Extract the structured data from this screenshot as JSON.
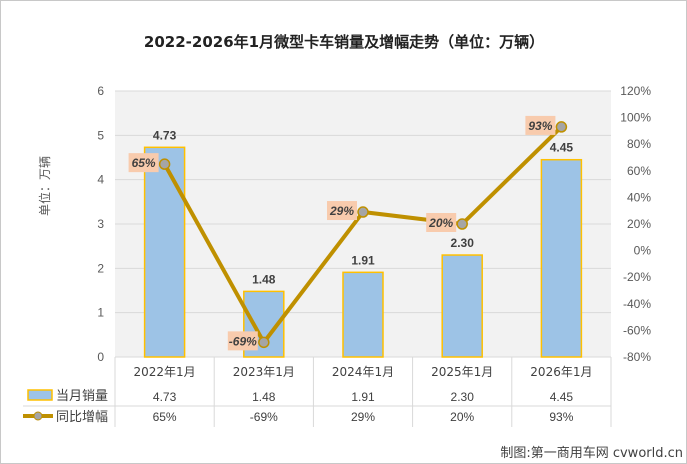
{
  "chart_data": {
    "type": "bar+line",
    "title": "2022-2026年1月微型卡车销量及增幅走势（单位：万辆）",
    "ylabel": "单位：万辆",
    "categories": [
      "2022年1月",
      "2023年1月",
      "2024年1月",
      "2025年1月",
      "2026年1月"
    ],
    "series": [
      {
        "name": "当月销量",
        "type": "bar",
        "axis": "left",
        "values": [
          4.73,
          1.48,
          1.91,
          2.3,
          4.45
        ],
        "labels": [
          "4.73",
          "1.48",
          "1.91",
          "2.30",
          "4.45"
        ],
        "color": "#9dc3e6",
        "border": "#ffc000"
      },
      {
        "name": "同比增幅",
        "type": "line",
        "axis": "right",
        "values": [
          65,
          -69,
          29,
          20,
          93
        ],
        "labels": [
          "65%",
          "-69%",
          "29%",
          "20%",
          "93%"
        ],
        "color": "#bf9000"
      }
    ],
    "ylim": [
      0,
      6
    ],
    "yticks": [
      "0",
      "1",
      "2",
      "3",
      "4",
      "5",
      "6"
    ],
    "y2lim": [
      -80,
      120
    ],
    "y2ticks": [
      "-80%",
      "-60%",
      "-40%",
      "-20%",
      "0%",
      "20%",
      "40%",
      "60%",
      "80%",
      "100%",
      "120%"
    ],
    "grid": true,
    "legend": "data-table-bottom"
  },
  "footer": {
    "credit": "制图:第一商用车网 cvworld.cn"
  }
}
